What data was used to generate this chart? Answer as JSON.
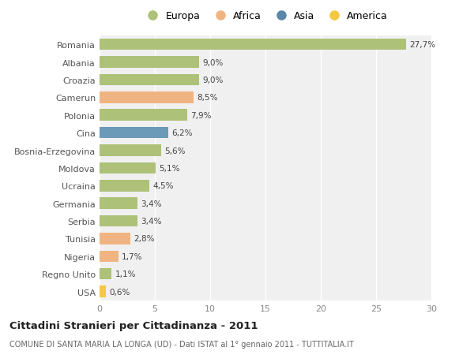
{
  "countries": [
    "Romania",
    "Albania",
    "Croazia",
    "Camerun",
    "Polonia",
    "Cina",
    "Bosnia-Erzegovina",
    "Moldova",
    "Ucraina",
    "Germania",
    "Serbia",
    "Tunisia",
    "Nigeria",
    "Regno Unito",
    "USA"
  ],
  "values": [
    27.7,
    9.0,
    9.0,
    8.5,
    7.9,
    6.2,
    5.6,
    5.1,
    4.5,
    3.4,
    3.4,
    2.8,
    1.7,
    1.1,
    0.6
  ],
  "labels": [
    "27,7%",
    "9,0%",
    "9,0%",
    "8,5%",
    "7,9%",
    "6,2%",
    "5,6%",
    "5,1%",
    "4,5%",
    "3,4%",
    "3,4%",
    "2,8%",
    "1,7%",
    "1,1%",
    "0,6%"
  ],
  "continents": [
    "Europa",
    "Europa",
    "Europa",
    "Africa",
    "Europa",
    "Asia",
    "Europa",
    "Europa",
    "Europa",
    "Europa",
    "Europa",
    "Africa",
    "Africa",
    "Europa",
    "America"
  ],
  "colors": {
    "Europa": "#adc178",
    "Africa": "#f0b482",
    "Asia": "#6b9ab8",
    "America": "#f5c842"
  },
  "xlim": [
    0,
    30
  ],
  "xticks": [
    0,
    5,
    10,
    15,
    20,
    25,
    30
  ],
  "title_main": "Cittadini Stranieri per Cittadinanza - 2011",
  "title_sub": "COMUNE DI SANTA MARIA LA LONGA (UD) - Dati ISTAT al 1° gennaio 2011 - TUTTITALIA.IT",
  "background_color": "#ffffff",
  "plot_background": "#f0f0f0",
  "grid_color": "#ffffff",
  "bar_alpha": 1.0,
  "bar_height": 0.65
}
